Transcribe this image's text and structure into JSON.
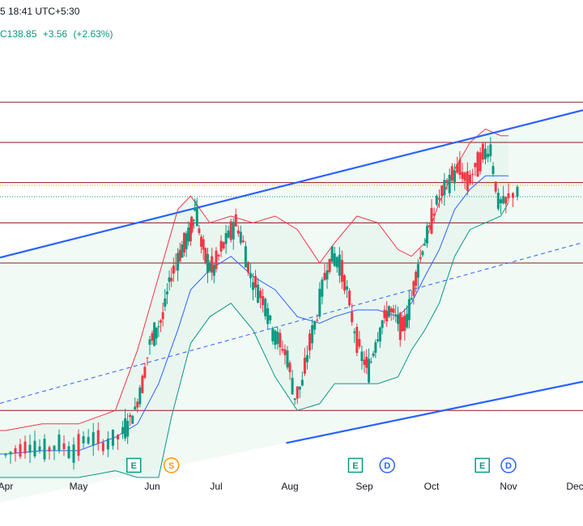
{
  "header": {
    "timestamp": "5 18:41 UTC+5:30",
    "price": "C138.85",
    "change": "+3.56",
    "change_pct": "(+2.63%)"
  },
  "colors": {
    "bull": "#089981",
    "bear": "#f23645",
    "bb_upper": "#f23645",
    "bb_lower": "#089981",
    "bb_basis": "#2962ff",
    "channel": "#2962ff",
    "hline": "#8b1a1a",
    "fill": "#e6f4ee"
  },
  "chart_data": {
    "type": "candlestick",
    "x_ticks": [
      "Apr",
      "May",
      "Jun",
      "Jul",
      "Aug",
      "Sep",
      "Oct",
      "Nov",
      "Dec"
    ],
    "y_range": [
      96,
      160
    ],
    "horizontal_levels": [
      152,
      146,
      140,
      134,
      128,
      106
    ],
    "channel": {
      "start_month": 2.9,
      "end_month": 11.0,
      "upper": [
        126,
        148
      ],
      "middle": [
        104,
        128
      ],
      "lower": [
        90,
        108
      ]
    },
    "events": [
      {
        "letter": "E",
        "month": 5.75,
        "color": "#089981"
      },
      {
        "letter": "S",
        "month": 6.3,
        "color": "#ff9800"
      },
      {
        "letter": "E",
        "month": 8.88,
        "color": "#089981"
      },
      {
        "letter": "D",
        "month": 9.34,
        "color": "#2962ff"
      },
      {
        "letter": "E",
        "month": 10.66,
        "color": "#089981"
      },
      {
        "letter": "D",
        "month": 11.0,
        "color": "#2962ff"
      }
    ],
    "closes": [
      [
        4.0,
        100
      ],
      [
        4.2,
        101
      ],
      [
        4.4,
        100
      ],
      [
        4.6,
        101
      ],
      [
        4.8,
        100
      ],
      [
        5.0,
        102
      ],
      [
        5.2,
        101
      ],
      [
        5.4,
        102
      ],
      [
        5.6,
        104
      ],
      [
        5.7,
        106
      ],
      [
        5.8,
        110
      ],
      [
        5.9,
        116
      ],
      [
        6.0,
        118
      ],
      [
        6.1,
        120
      ],
      [
        6.2,
        125
      ],
      [
        6.3,
        128
      ],
      [
        6.4,
        130
      ],
      [
        6.5,
        132
      ],
      [
        6.6,
        134
      ],
      [
        6.65,
        137
      ],
      [
        6.7,
        131
      ],
      [
        6.8,
        128
      ],
      [
        6.9,
        127
      ],
      [
        7.0,
        130
      ],
      [
        7.1,
        132
      ],
      [
        7.2,
        134
      ],
      [
        7.3,
        131
      ],
      [
        7.4,
        126
      ],
      [
        7.5,
        124
      ],
      [
        7.6,
        122
      ],
      [
        7.7,
        118
      ],
      [
        7.8,
        116
      ],
      [
        7.9,
        114
      ],
      [
        8.0,
        108
      ],
      [
        8.1,
        110
      ],
      [
        8.2,
        116
      ],
      [
        8.3,
        120
      ],
      [
        8.4,
        126
      ],
      [
        8.5,
        129
      ],
      [
        8.6,
        128
      ],
      [
        8.7,
        124
      ],
      [
        8.8,
        118
      ],
      [
        8.9,
        114
      ],
      [
        9.0,
        112
      ],
      [
        9.1,
        116
      ],
      [
        9.2,
        119
      ],
      [
        9.3,
        121
      ],
      [
        9.4,
        120
      ],
      [
        9.5,
        118
      ],
      [
        9.6,
        121
      ],
      [
        9.7,
        126
      ],
      [
        9.8,
        130
      ],
      [
        9.9,
        133
      ],
      [
        10.0,
        137
      ],
      [
        10.1,
        139
      ],
      [
        10.2,
        141
      ],
      [
        10.3,
        142
      ],
      [
        10.4,
        140
      ],
      [
        10.5,
        142
      ],
      [
        10.6,
        144
      ],
      [
        10.7,
        145
      ],
      [
        10.8,
        137
      ],
      [
        10.9,
        137
      ],
      [
        11.0,
        139
      ]
    ],
    "bb_upper": [
      [
        3.0,
        104
      ],
      [
        3.5,
        103
      ],
      [
        4.0,
        103
      ],
      [
        4.5,
        104
      ],
      [
        5.0,
        104
      ],
      [
        5.5,
        106
      ],
      [
        5.8,
        115
      ],
      [
        6.1,
        126
      ],
      [
        6.4,
        136
      ],
      [
        6.6,
        138
      ],
      [
        6.9,
        134
      ],
      [
        7.2,
        135
      ],
      [
        7.5,
        134
      ],
      [
        7.8,
        135
      ],
      [
        8.1,
        133
      ],
      [
        8.4,
        128
      ],
      [
        8.6,
        131
      ],
      [
        8.9,
        135
      ],
      [
        9.2,
        134
      ],
      [
        9.5,
        130
      ],
      [
        9.7,
        129
      ],
      [
        9.9,
        131
      ],
      [
        10.1,
        137
      ],
      [
        10.3,
        142
      ],
      [
        10.5,
        146
      ],
      [
        10.7,
        148
      ],
      [
        10.9,
        147
      ],
      [
        11.0,
        147
      ]
    ],
    "bb_basis": [
      [
        3.0,
        100
      ],
      [
        3.5,
        99.5
      ],
      [
        4.0,
        99.5
      ],
      [
        4.5,
        100
      ],
      [
        5.0,
        100
      ],
      [
        5.5,
        102
      ],
      [
        5.8,
        104
      ],
      [
        6.1,
        110
      ],
      [
        6.4,
        118
      ],
      [
        6.6,
        124
      ],
      [
        6.9,
        127
      ],
      [
        7.2,
        129
      ],
      [
        7.5,
        126
      ],
      [
        7.8,
        124
      ],
      [
        8.1,
        120
      ],
      [
        8.4,
        119
      ],
      [
        8.6,
        120
      ],
      [
        8.9,
        121
      ],
      [
        9.2,
        121
      ],
      [
        9.5,
        120
      ],
      [
        9.7,
        122
      ],
      [
        9.9,
        126
      ],
      [
        10.1,
        130
      ],
      [
        10.3,
        136
      ],
      [
        10.5,
        139
      ],
      [
        10.7,
        141
      ],
      [
        10.9,
        141
      ],
      [
        11.0,
        141
      ]
    ],
    "bb_lower": [
      [
        3.0,
        96
      ],
      [
        3.5,
        96
      ],
      [
        4.0,
        96
      ],
      [
        4.5,
        96
      ],
      [
        5.0,
        96
      ],
      [
        5.5,
        97
      ],
      [
        5.8,
        96
      ],
      [
        6.1,
        96
      ],
      [
        6.3,
        105
      ],
      [
        6.6,
        116
      ],
      [
        6.9,
        120
      ],
      [
        7.2,
        122
      ],
      [
        7.5,
        118
      ],
      [
        7.8,
        111
      ],
      [
        8.1,
        106
      ],
      [
        8.4,
        107
      ],
      [
        8.6,
        110
      ],
      [
        8.9,
        110
      ],
      [
        9.2,
        110
      ],
      [
        9.5,
        111
      ],
      [
        9.7,
        115
      ],
      [
        9.9,
        118
      ],
      [
        10.1,
        122
      ],
      [
        10.3,
        129
      ],
      [
        10.5,
        133
      ],
      [
        10.7,
        134
      ],
      [
        10.9,
        135
      ],
      [
        11.0,
        137
      ]
    ]
  }
}
